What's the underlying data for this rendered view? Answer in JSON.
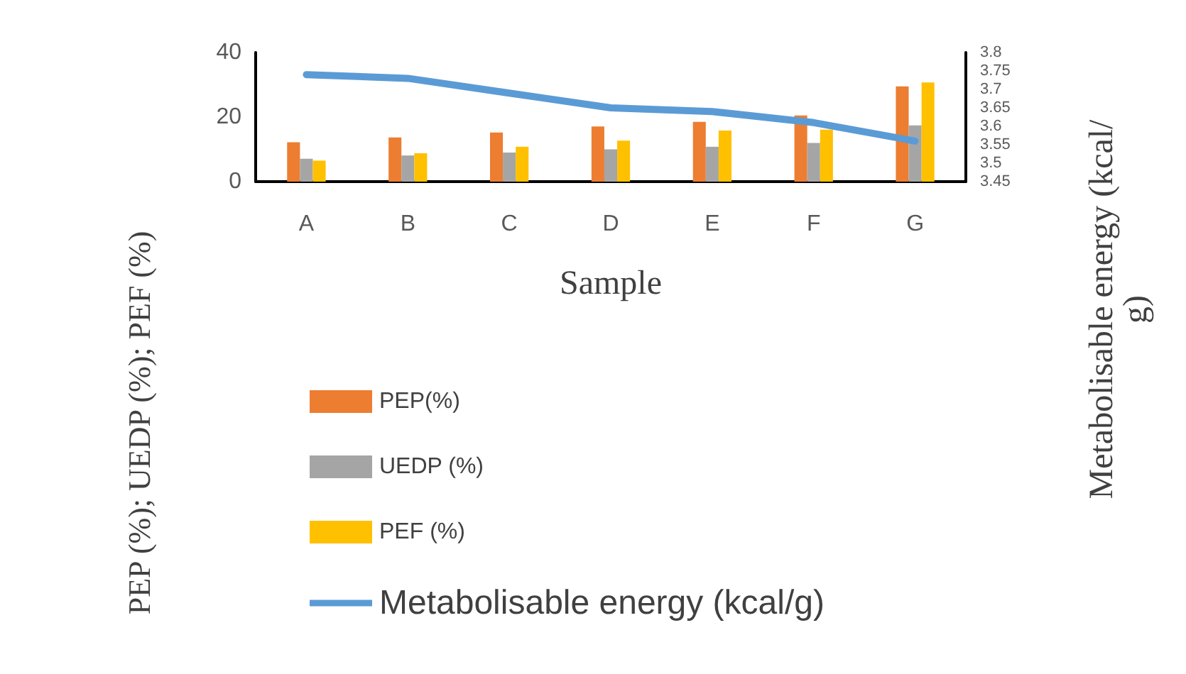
{
  "chart_data": {
    "type": "bar",
    "categories": [
      "A",
      "B",
      "C",
      "D",
      "E",
      "F",
      "G"
    ],
    "xlabel": "Sample",
    "ylabel": "PEP (%); UEDP (%); PEF (%)",
    "y2label": "Metabolisable energy (kcal/g)",
    "series": [
      {
        "name": "PEP(%)",
        "color": "#ed7d31",
        "values": [
          12.2,
          13.7,
          15.2,
          17.1,
          18.5,
          20.5,
          29.5
        ]
      },
      {
        "name": "UEDP (%)",
        "color": "#a5a5a5",
        "values": [
          7.1,
          8.1,
          9.0,
          10.0,
          10.8,
          12.0,
          17.4
        ]
      },
      {
        "name": "PEF (%)",
        "color": "#ffc000",
        "values": [
          6.5,
          8.8,
          10.8,
          12.7,
          15.8,
          16.1,
          30.7
        ]
      },
      {
        "name": "Metabolisable energy (kcal/g)",
        "type": "line",
        "axis": "y2",
        "color": "#5b9bd5",
        "values": [
          3.74,
          3.73,
          3.69,
          3.65,
          3.64,
          3.61,
          3.56
        ]
      }
    ],
    "ylim": [
      0,
      40
    ],
    "yticks": [
      0,
      20,
      40
    ],
    "y2lim": [
      3.45,
      3.8
    ],
    "y2ticks": [
      3.45,
      3.5,
      3.55,
      3.6,
      3.65,
      3.7,
      3.75,
      3.8
    ],
    "grid": false,
    "legend": "bottom",
    "marker": "none",
    "line_style": "solid"
  }
}
